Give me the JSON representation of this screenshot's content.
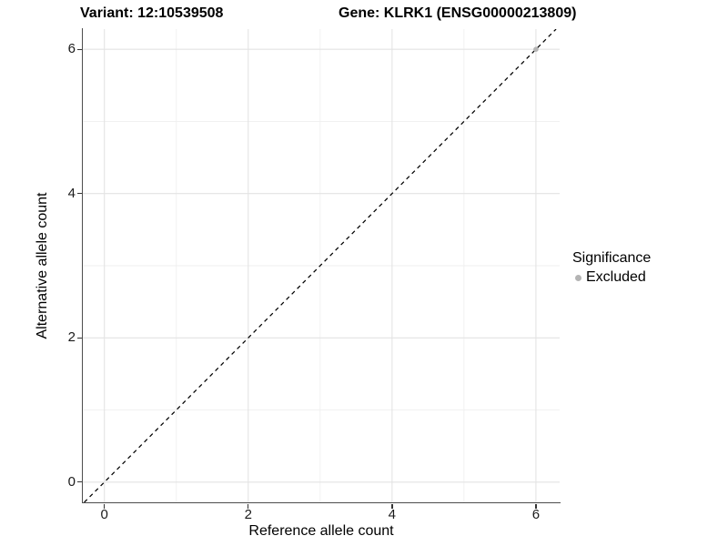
{
  "chart_data": {
    "type": "scatter",
    "title_left": "Variant: 12:10539508",
    "title_right": "Gene: KLRK1 (ENSG00000213809)",
    "xlabel": "Reference allele count",
    "ylabel": "Alternative allele count",
    "xlim": [
      -0.3,
      6.33
    ],
    "ylim": [
      -0.28,
      6.28
    ],
    "x_ticks": [
      0,
      2,
      4,
      6
    ],
    "y_ticks": [
      0,
      2,
      4,
      6
    ],
    "x_minor_ticks": [
      1,
      3,
      5
    ],
    "y_minor_ticks": [
      1,
      3,
      5
    ],
    "grid": true,
    "reference_line": {
      "slope": 1,
      "intercept": 0,
      "style": "dashed"
    },
    "series": [
      {
        "name": "Excluded",
        "points": [
          {
            "x": 6,
            "y": 6
          }
        ]
      }
    ],
    "legend": {
      "title": "Significance",
      "position": "right",
      "entries": [
        {
          "label": "Excluded",
          "color": "#b4b4b4"
        }
      ]
    }
  },
  "colors": {
    "background": "#ffffff",
    "grid_major": "#e3e3e3",
    "grid_minor": "#efefef",
    "axis_line": "#4d4d4d",
    "tick_mark": "#333333",
    "text": "#000000",
    "reference_line": "#000000",
    "point_excluded": "#b4b4b4"
  }
}
